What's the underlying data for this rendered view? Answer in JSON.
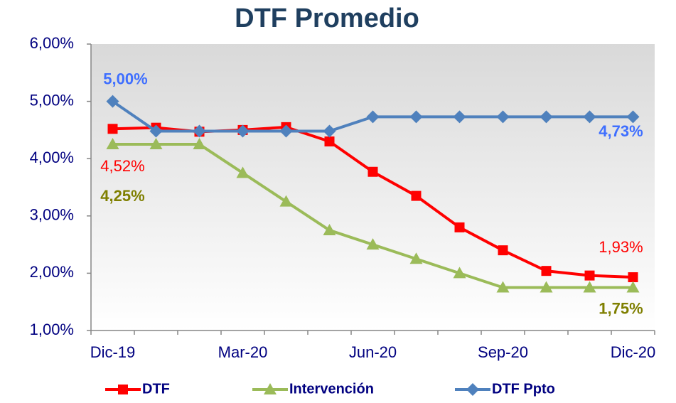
{
  "chart_data": {
    "type": "line",
    "title": "DTF Promedio",
    "categories": [
      "Dic-19",
      null,
      null,
      "Mar-20",
      null,
      null,
      "Jun-20",
      null,
      null,
      "Sep-20",
      null,
      null,
      "Dic-20"
    ],
    "ylim": [
      1,
      6
    ],
    "yticks": [
      {
        "value": 1,
        "label": "1,00%"
      },
      {
        "value": 2,
        "label": "2,00%"
      },
      {
        "value": 3,
        "label": "3,00%"
      },
      {
        "value": 4,
        "label": "4,00%"
      },
      {
        "value": 5,
        "label": "5,00%"
      },
      {
        "value": 6,
        "label": "6,00%"
      }
    ],
    "legend": "bottom",
    "series": [
      {
        "name": "DTF",
        "color": "#ff0000",
        "marker": "square",
        "values": [
          4.52,
          4.54,
          4.47,
          4.5,
          4.55,
          4.3,
          3.77,
          3.35,
          2.8,
          2.4,
          2.04,
          1.96,
          1.93
        ],
        "value_labels": [
          "4,52%",
          null,
          null,
          null,
          null,
          null,
          null,
          null,
          null,
          null,
          null,
          null,
          "1,93%"
        ],
        "label_color": "#ff0000"
      },
      {
        "name": "Intervención",
        "color": "#9bbb59",
        "marker": "triangle",
        "values": [
          4.25,
          4.25,
          4.25,
          3.75,
          3.25,
          2.75,
          2.5,
          2.25,
          2.0,
          1.75,
          1.75,
          1.75,
          1.75
        ],
        "value_labels": [
          "4,25%",
          null,
          null,
          null,
          null,
          null,
          null,
          null,
          null,
          null,
          null,
          null,
          "1,75%"
        ],
        "label_color": "#7f7f00"
      },
      {
        "name": "DTF Ppto",
        "color": "#4f81bd",
        "marker": "diamond",
        "values": [
          5.0,
          4.48,
          4.48,
          4.48,
          4.48,
          4.48,
          4.73,
          4.73,
          4.73,
          4.73,
          4.73,
          4.73,
          4.73
        ],
        "value_labels": [
          "5,00%",
          null,
          null,
          null,
          null,
          null,
          null,
          null,
          null,
          null,
          null,
          null,
          "4,73%"
        ],
        "label_color": "#3f6fff"
      }
    ]
  }
}
